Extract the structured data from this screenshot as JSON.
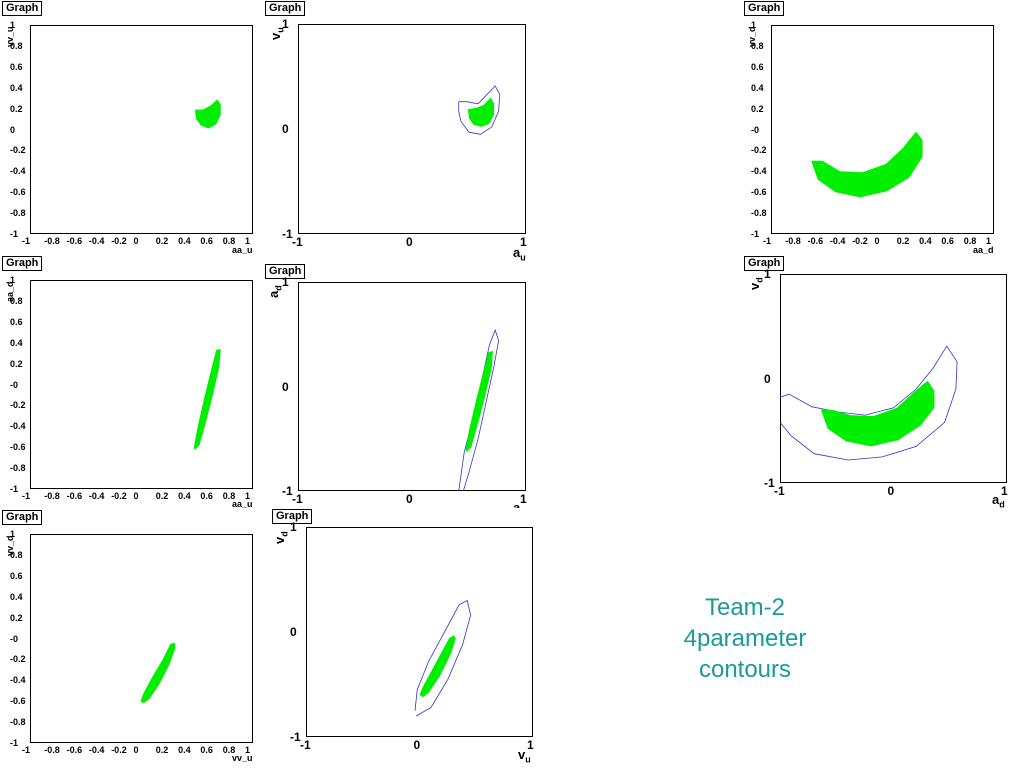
{
  "title_label": "Graph",
  "caption": [
    "Team-2",
    "4parameter",
    "contours"
  ],
  "colors": {
    "fill": "#00ee00",
    "line": "#3333cc",
    "caption": "#1a9a9a"
  },
  "chart_data": [
    {
      "id": "p1",
      "type": "area",
      "xlabel": "aa_u",
      "ylabel": "vv_u",
      "xlim": [
        -1,
        1
      ],
      "ylim": [
        -1,
        1
      ],
      "xticks": [
        "-1",
        "-0.8",
        "-0.6",
        "-0.4",
        "-0.2",
        "0",
        "0.2",
        "0.4",
        "0.6",
        "0.8",
        "1"
      ],
      "yticks": [
        "1",
        "0.8",
        "0.6",
        "0.4",
        "0.2",
        "0",
        "-0.2",
        "-0.4",
        "-0.6",
        "-0.8",
        "-1"
      ],
      "filled": [
        [
          0.48,
          0.19
        ],
        [
          0.55,
          0.19
        ],
        [
          0.62,
          0.23
        ],
        [
          0.68,
          0.29
        ],
        [
          0.71,
          0.24
        ],
        [
          0.71,
          0.14
        ],
        [
          0.67,
          0.05
        ],
        [
          0.6,
          0.01
        ],
        [
          0.53,
          0.04
        ],
        [
          0.49,
          0.1
        ]
      ],
      "outline": []
    },
    {
      "id": "p2",
      "type": "area",
      "xlabel": "a",
      "xsub": "u",
      "ylabel": "v",
      "ysub": "u",
      "xlim": [
        -1,
        1
      ],
      "ylim": [
        -1,
        1
      ],
      "xticks": [
        "-1",
        "0",
        "1"
      ],
      "yticks": [
        "1",
        "0",
        "-1"
      ],
      "filled": [
        [
          0.49,
          0.19
        ],
        [
          0.56,
          0.2
        ],
        [
          0.63,
          0.23
        ],
        [
          0.69,
          0.3
        ],
        [
          0.72,
          0.24
        ],
        [
          0.72,
          0.14
        ],
        [
          0.68,
          0.05
        ],
        [
          0.61,
          0.02
        ],
        [
          0.54,
          0.04
        ],
        [
          0.5,
          0.1
        ]
      ],
      "outline": [
        [
          0.41,
          0.26
        ],
        [
          0.48,
          0.26
        ],
        [
          0.58,
          0.24
        ],
        [
          0.66,
          0.33
        ],
        [
          0.73,
          0.41
        ],
        [
          0.77,
          0.33
        ],
        [
          0.76,
          0.17
        ],
        [
          0.7,
          0.02
        ],
        [
          0.6,
          -0.05
        ],
        [
          0.5,
          -0.03
        ],
        [
          0.43,
          0.07
        ],
        [
          0.41,
          0.17
        ],
        [
          0.41,
          0.26
        ]
      ]
    },
    {
      "id": "p3",
      "type": "area",
      "xlabel": "aa_d",
      "ylabel": "vv_d",
      "xlim": [
        -1,
        1
      ],
      "ylim": [
        -1,
        1
      ],
      "xticks": [
        "-1",
        "-0.8",
        "-0.6",
        "-0.4",
        "-0.2",
        "0",
        "0.2",
        "0.4",
        "0.6",
        "0.8",
        "1"
      ],
      "yticks": [
        "1",
        "0.8",
        "0.6",
        "0.4",
        "0.2",
        "-0",
        "-0.2",
        "-0.4",
        "-0.6",
        "-0.8",
        "-1"
      ],
      "filled": [
        [
          -0.64,
          -0.3
        ],
        [
          -0.54,
          -0.3
        ],
        [
          -0.38,
          -0.4
        ],
        [
          -0.18,
          -0.41
        ],
        [
          0.03,
          -0.33
        ],
        [
          0.18,
          -0.18
        ],
        [
          0.3,
          -0.02
        ],
        [
          0.36,
          -0.1
        ],
        [
          0.36,
          -0.26
        ],
        [
          0.24,
          -0.46
        ],
        [
          0.04,
          -0.59
        ],
        [
          -0.2,
          -0.65
        ],
        [
          -0.42,
          -0.6
        ],
        [
          -0.58,
          -0.48
        ]
      ],
      "outline": []
    },
    {
      "id": "p4",
      "type": "area",
      "xlabel": "aa_u",
      "ylabel": "aa_d",
      "xlim": [
        -1,
        1
      ],
      "ylim": [
        -1,
        1
      ],
      "xticks": [
        "-1",
        "-0.8",
        "-0.6",
        "-0.4",
        "-0.2",
        "0",
        "0.2",
        "0.4",
        "0.6",
        "0.8",
        "1"
      ],
      "yticks": [
        "1",
        "0.8",
        "0.6",
        "0.4",
        "0.2",
        "-0",
        "-0.2",
        "-0.4",
        "-0.6",
        "-0.8",
        "-1"
      ],
      "filled": [
        [
          0.48,
          -0.63
        ],
        [
          0.52,
          -0.58
        ],
        [
          0.58,
          -0.35
        ],
        [
          0.64,
          -0.1
        ],
        [
          0.7,
          0.18
        ],
        [
          0.71,
          0.34
        ],
        [
          0.67,
          0.33
        ],
        [
          0.62,
          0.12
        ],
        [
          0.56,
          -0.14
        ],
        [
          0.5,
          -0.42
        ],
        [
          0.47,
          -0.6
        ]
      ],
      "outline": []
    },
    {
      "id": "p5",
      "type": "area",
      "xlabel": "a",
      "xsub": "u",
      "ylabel": "a",
      "ysub": "d",
      "xlim": [
        -1,
        1
      ],
      "ylim": [
        -1,
        1
      ],
      "xticks": [
        "-1",
        "0",
        "1"
      ],
      "yticks": [
        "1",
        "0",
        "-1"
      ],
      "filled": [
        [
          0.48,
          -0.63
        ],
        [
          0.52,
          -0.58
        ],
        [
          0.58,
          -0.35
        ],
        [
          0.64,
          -0.1
        ],
        [
          0.7,
          0.18
        ],
        [
          0.71,
          0.34
        ],
        [
          0.67,
          0.33
        ],
        [
          0.62,
          0.12
        ],
        [
          0.56,
          -0.14
        ],
        [
          0.5,
          -0.42
        ],
        [
          0.47,
          -0.6
        ]
      ],
      "outline": [
        [
          0.41,
          -1.0
        ],
        [
          0.46,
          -0.62
        ],
        [
          0.55,
          -0.25
        ],
        [
          0.62,
          0.1
        ],
        [
          0.68,
          0.4
        ],
        [
          0.73,
          0.54
        ],
        [
          0.76,
          0.44
        ],
        [
          0.72,
          0.2
        ],
        [
          0.65,
          -0.15
        ],
        [
          0.58,
          -0.5
        ],
        [
          0.5,
          -0.82
        ],
        [
          0.45,
          -1.0
        ]
      ]
    },
    {
      "id": "p6",
      "type": "area",
      "xlabel": "a",
      "xsub": "d",
      "ylabel": "v",
      "ysub": "d",
      "xlim": [
        -1,
        1
      ],
      "ylim": [
        -1,
        1
      ],
      "xticks": [
        "-1",
        "0",
        "1"
      ],
      "yticks": [
        "1",
        "0",
        "-1"
      ],
      "filled": [
        [
          -0.64,
          -0.3
        ],
        [
          -0.54,
          -0.3
        ],
        [
          -0.38,
          -0.35
        ],
        [
          -0.18,
          -0.36
        ],
        [
          0.03,
          -0.28
        ],
        [
          0.18,
          -0.13
        ],
        [
          0.3,
          -0.02
        ],
        [
          0.36,
          -0.12
        ],
        [
          0.36,
          -0.28
        ],
        [
          0.24,
          -0.45
        ],
        [
          0.04,
          -0.59
        ],
        [
          -0.2,
          -0.65
        ],
        [
          -0.42,
          -0.6
        ],
        [
          -0.58,
          -0.48
        ]
      ],
      "outline": [
        [
          -1.0,
          -0.18
        ],
        [
          -0.92,
          -0.15
        ],
        [
          -0.72,
          -0.27
        ],
        [
          -0.5,
          -0.32
        ],
        [
          -0.25,
          -0.35
        ],
        [
          0.0,
          -0.28
        ],
        [
          0.2,
          -0.1
        ],
        [
          0.35,
          0.1
        ],
        [
          0.47,
          0.31
        ],
        [
          0.56,
          0.16
        ],
        [
          0.55,
          -0.1
        ],
        [
          0.45,
          -0.42
        ],
        [
          0.2,
          -0.65
        ],
        [
          -0.1,
          -0.75
        ],
        [
          -0.4,
          -0.78
        ],
        [
          -0.7,
          -0.72
        ],
        [
          -0.9,
          -0.55
        ],
        [
          -1.0,
          -0.42
        ]
      ]
    },
    {
      "id": "p7",
      "type": "area",
      "xlabel": "vv_u",
      "ylabel": "vv_d",
      "xlim": [
        -1,
        1
      ],
      "ylim": [
        -1,
        1
      ],
      "xticks": [
        "-1",
        "-0.8",
        "-0.6",
        "-0.4",
        "-0.2",
        "0",
        "0.2",
        "0.4",
        "0.6",
        "0.8",
        "1"
      ],
      "yticks": [
        "1",
        "0.8",
        "0.6",
        "0.4",
        "0.2",
        "-0",
        "-0.2",
        "-0.4",
        "-0.6",
        "-0.8",
        "-1"
      ],
      "filled": [
        [
          0.02,
          -0.62
        ],
        [
          0.07,
          -0.58
        ],
        [
          0.16,
          -0.44
        ],
        [
          0.25,
          -0.25
        ],
        [
          0.3,
          -0.1
        ],
        [
          0.3,
          -0.04
        ],
        [
          0.26,
          -0.05
        ],
        [
          0.19,
          -0.2
        ],
        [
          0.1,
          -0.36
        ],
        [
          0.02,
          -0.52
        ],
        [
          -0.01,
          -0.6
        ]
      ],
      "outline": []
    },
    {
      "id": "p8",
      "type": "area",
      "xlabel": "v",
      "xsub": "u",
      "ylabel": "v",
      "ysub": "d",
      "xlim": [
        -1,
        1
      ],
      "ylim": [
        -1,
        1
      ],
      "xticks": [
        "-1",
        "0",
        "1"
      ],
      "yticks": [
        "1",
        "0",
        "-1"
      ],
      "filled": [
        [
          0.03,
          -0.62
        ],
        [
          0.08,
          -0.58
        ],
        [
          0.18,
          -0.42
        ],
        [
          0.28,
          -0.2
        ],
        [
          0.32,
          -0.06
        ],
        [
          0.3,
          -0.03
        ],
        [
          0.26,
          -0.06
        ],
        [
          0.19,
          -0.2
        ],
        [
          0.1,
          -0.38
        ],
        [
          0.03,
          -0.52
        ],
        [
          0.0,
          -0.6
        ]
      ],
      "outline": [
        [
          -0.03,
          -0.8
        ],
        [
          0.1,
          -0.72
        ],
        [
          0.25,
          -0.45
        ],
        [
          0.38,
          -0.12
        ],
        [
          0.45,
          0.16
        ],
        [
          0.42,
          0.3
        ],
        [
          0.35,
          0.26
        ],
        [
          0.22,
          0.0
        ],
        [
          0.08,
          -0.28
        ],
        [
          -0.02,
          -0.55
        ],
        [
          -0.04,
          -0.75
        ]
      ]
    }
  ]
}
